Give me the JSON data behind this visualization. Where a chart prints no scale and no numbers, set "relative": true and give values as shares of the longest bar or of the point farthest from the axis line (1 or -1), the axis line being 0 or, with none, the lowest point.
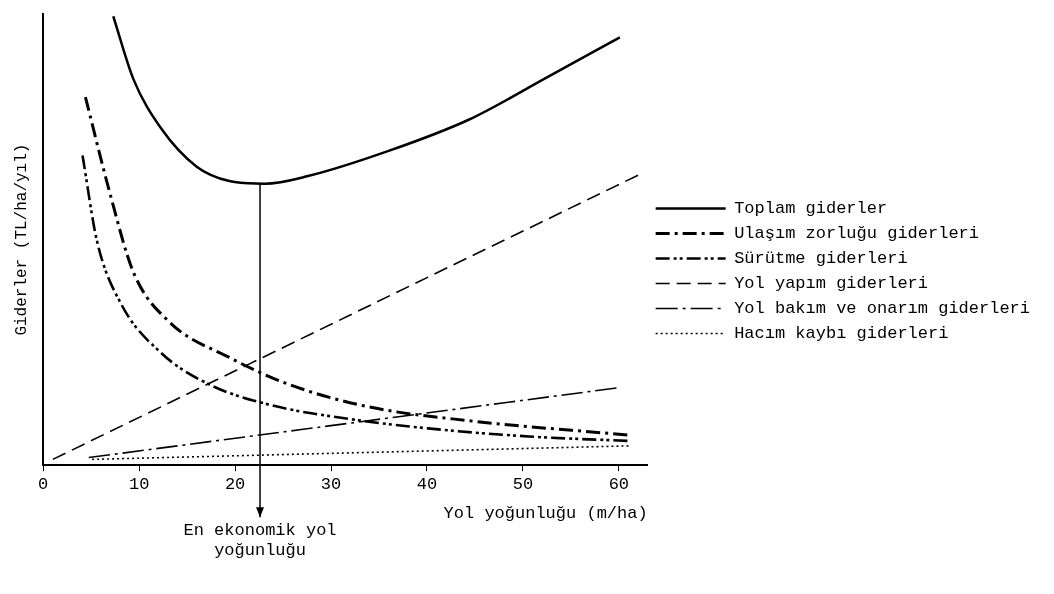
{
  "chart_data": {
    "type": "line",
    "relative": true,
    "xlabel": "Yol yoğunluğu (m/ha)",
    "ylabel": "Giderler (TL/ha/yıl)",
    "xlim": [
      0,
      63
    ],
    "xticks": [
      0,
      10,
      20,
      30,
      40,
      50,
      60
    ],
    "legend": "right",
    "grid": false,
    "series": [
      {
        "name": "Toplam giderler",
        "color": "#000000",
        "line_style": "solid",
        "x": [
          7.3,
          9.4,
          12.3,
          16,
          19.4,
          23.1,
          27.6,
          36,
          44.4,
          52.6,
          60.1
        ],
        "values": [
          1.0,
          0.86,
          0.75,
          0.665,
          0.633,
          0.627,
          0.644,
          0.7,
          0.77,
          0.865,
          0.953
        ]
      },
      {
        "name": "Ulaşım zorluğu giderleri",
        "color": "#000000",
        "line_style": "dashdot",
        "x": [
          4.4,
          6.9,
          9.4,
          13.1,
          19.4,
          25.6,
          33.9,
          44.4,
          61
        ],
        "values": [
          0.82,
          0.61,
          0.43,
          0.32,
          0.24,
          0.18,
          0.13,
          0.099,
          0.067
        ]
      },
      {
        "name": "Sürütme giderleri",
        "color": "#000000",
        "line_style": "dashdotdot",
        "x": [
          4.1,
          5.6,
          8.1,
          12.3,
          17.3,
          23.5,
          31.9,
          40.1,
          50.6,
          61
        ],
        "values": [
          0.69,
          0.5,
          0.36,
          0.25,
          0.18,
          0.135,
          0.103,
          0.082,
          0.064,
          0.054
        ]
      },
      {
        "name": "Yol yapım giderleri",
        "color": "#000000",
        "line_style": "dashed",
        "x": [
          1,
          62
        ],
        "values": [
          0.013,
          0.646
        ]
      },
      {
        "name": "Yol bakım ve onarım giderleri",
        "color": "#000000",
        "line_style": "longdashdot",
        "x": [
          4.75,
          59.75
        ],
        "values": [
          0.017,
          0.172
        ]
      },
      {
        "name": "Hacım kaybı giderleri",
        "color": "#000000",
        "line_style": "dotted",
        "x": [
          5.1,
          61
        ],
        "values": [
          0.013,
          0.043
        ]
      }
    ],
    "annotations": [
      {
        "text": "En ekonomik yol yoğunluğu",
        "x": 22.6,
        "y": 0.627
      }
    ]
  }
}
